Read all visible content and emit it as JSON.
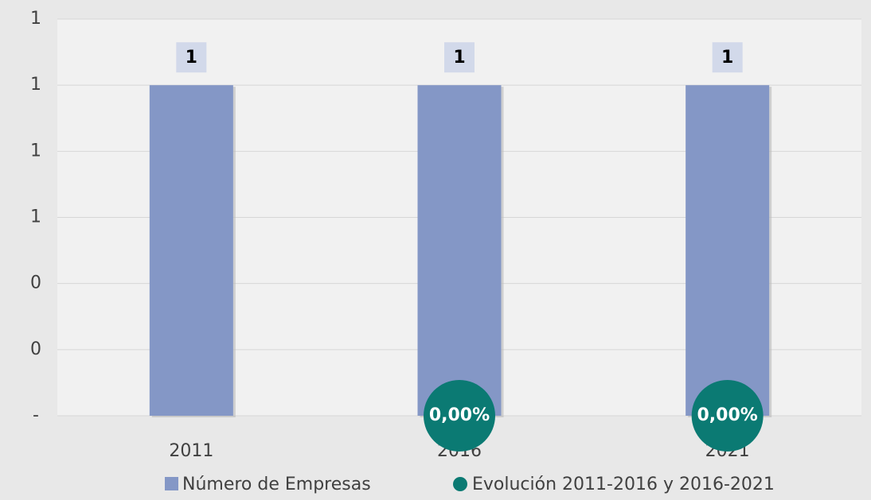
{
  "chart_data": {
    "type": "bar",
    "categories": [
      "2011",
      "2016",
      "2021"
    ],
    "series": [
      {
        "name": "Número de Empresas",
        "color": "#8497c6",
        "values": [
          1,
          1,
          1
        ]
      },
      {
        "name": "Evolución 2011-2016 y 2016-2021",
        "color": "#0b7a73",
        "type": "scatter",
        "values": [
          null,
          0,
          0
        ],
        "value_labels": [
          null,
          "0,00%",
          "0,00%"
        ]
      }
    ],
    "ylim": [
      0,
      1.2
    ],
    "yticks": [
      {
        "value": 0,
        "label": "-"
      },
      {
        "value": 0.2,
        "label": "0"
      },
      {
        "value": 0.4,
        "label": "0"
      },
      {
        "value": 0.6,
        "label": "1"
      },
      {
        "value": 0.8,
        "label": "1"
      },
      {
        "value": 1.0,
        "label": "1"
      },
      {
        "value": 1.2,
        "label": "1"
      }
    ],
    "grid": true,
    "legend": "bottom"
  }
}
